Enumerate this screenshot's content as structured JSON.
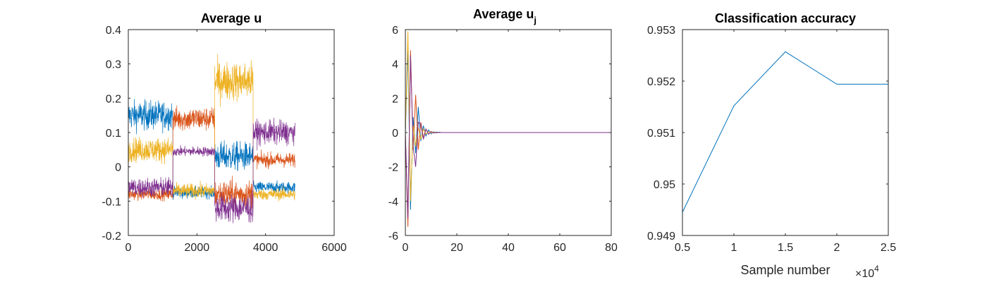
{
  "colors": [
    "#0072bd",
    "#d95319",
    "#edb120",
    "#7e2f8e"
  ],
  "chart_data": [
    {
      "type": "line",
      "title": "Average u",
      "xlabel": "",
      "ylabel": "",
      "xlim": [
        0,
        6000
      ],
      "ylim": [
        -0.2,
        0.4
      ],
      "xticks": [
        0,
        2000,
        4000,
        6000
      ],
      "yticks": [
        -0.2,
        -0.1,
        0,
        0.1,
        0.2,
        0.3,
        0.4
      ],
      "xtick_labels": [
        "0",
        "2000",
        "4000",
        "6000"
      ],
      "ytick_labels": [
        "-0.2",
        "-0.1",
        "0",
        "0.1",
        "0.2",
        "0.3",
        "0.4"
      ],
      "grid": false,
      "description": "Noisy traces for 4 series (blue, orange, yellow, purple); each series shifts its mean level at segment boundaries.",
      "segments_x": [
        0,
        1300,
        2520,
        3640,
        4860
      ],
      "series": [
        {
          "color_index": 0,
          "means": [
            0.15,
            -0.075,
            0.03,
            -0.06
          ],
          "noise": [
            0.03,
            0.012,
            0.03,
            0.012
          ]
        },
        {
          "color_index": 1,
          "means": [
            -0.08,
            0.14,
            -0.08,
            0.02
          ],
          "noise": [
            0.012,
            0.025,
            0.03,
            0.015
          ]
        },
        {
          "color_index": 2,
          "means": [
            0.05,
            -0.07,
            0.25,
            -0.08
          ],
          "noise": [
            0.025,
            0.015,
            0.04,
            0.012
          ]
        },
        {
          "color_index": 3,
          "means": [
            -0.06,
            0.045,
            -0.12,
            0.1
          ],
          "noise": [
            0.02,
            0.01,
            0.03,
            0.025
          ]
        }
      ]
    },
    {
      "type": "line",
      "title": "Average u",
      "title_subscript": "j",
      "xlabel": "",
      "ylabel": "",
      "xlim": [
        0,
        80
      ],
      "ylim": [
        -6,
        6
      ],
      "xticks": [
        0,
        20,
        40,
        60,
        80
      ],
      "yticks": [
        -6,
        -4,
        -2,
        0,
        2,
        4,
        6
      ],
      "xtick_labels": [
        "0",
        "20",
        "40",
        "60",
        "80"
      ],
      "ytick_labels": [
        "-6",
        "-4",
        "-2",
        "0",
        "2",
        "4",
        "6"
      ],
      "grid": false,
      "description": "Damped oscillations converging to 0 for 4 series.",
      "series": [
        {
          "color_index": 0,
          "values": [
            0,
            5.0,
            -4.5,
            0.9,
            -1.2,
            1.5,
            -0.5,
            0.4,
            -0.2,
            0.15,
            -0.08,
            0.05,
            -0.03,
            0.02,
            0,
            0,
            0,
            0,
            0,
            0,
            0
          ]
        },
        {
          "color_index": 1,
          "values": [
            0,
            -5.5,
            4.8,
            -1.0,
            2.2,
            -1.0,
            0.6,
            -0.3,
            0.2,
            -0.1,
            0.06,
            -0.03,
            0.02,
            0,
            0,
            0,
            0,
            0,
            0,
            0,
            0
          ]
        },
        {
          "color_index": 2,
          "values": [
            0,
            5.9,
            -4.0,
            0.4,
            -0.8,
            0.3,
            -0.4,
            0.2,
            -0.1,
            0.06,
            -0.03,
            0.02,
            0,
            0,
            0,
            0,
            0,
            0,
            0,
            0,
            0
          ]
        },
        {
          "color_index": 3,
          "values": [
            0,
            -5.0,
            4.5,
            -0.8,
            -2.0,
            0.6,
            0.5,
            -0.4,
            0.2,
            -0.1,
            0.05,
            -0.03,
            0.02,
            0,
            0,
            0,
            0,
            0,
            0,
            0,
            0
          ]
        }
      ],
      "x_end": 80
    },
    {
      "type": "line",
      "title": "Classification accuracy",
      "xlabel": "Sample number",
      "ylabel": "",
      "xlim": [
        0.5,
        2.5
      ],
      "ylim": [
        0.949,
        0.953
      ],
      "xticks": [
        0.5,
        1,
        1.5,
        2,
        2.5
      ],
      "yticks": [
        0.949,
        0.95,
        0.951,
        0.952,
        0.953
      ],
      "xtick_labels": [
        "0.5",
        "1",
        "1.5",
        "2",
        "2.5"
      ],
      "ytick_labels": [
        "0.949",
        "0.95",
        "0.951",
        "0.952",
        "0.953"
      ],
      "x_multiplier": "×10",
      "x_multiplier_exp": "4",
      "grid": false,
      "series": [
        {
          "color_index": 0,
          "x": [
            0.5,
            1.0,
            1.5,
            2.0,
            2.5
          ],
          "values": [
            0.94945,
            0.95152,
            0.95257,
            0.95194,
            0.95194
          ]
        }
      ]
    }
  ]
}
